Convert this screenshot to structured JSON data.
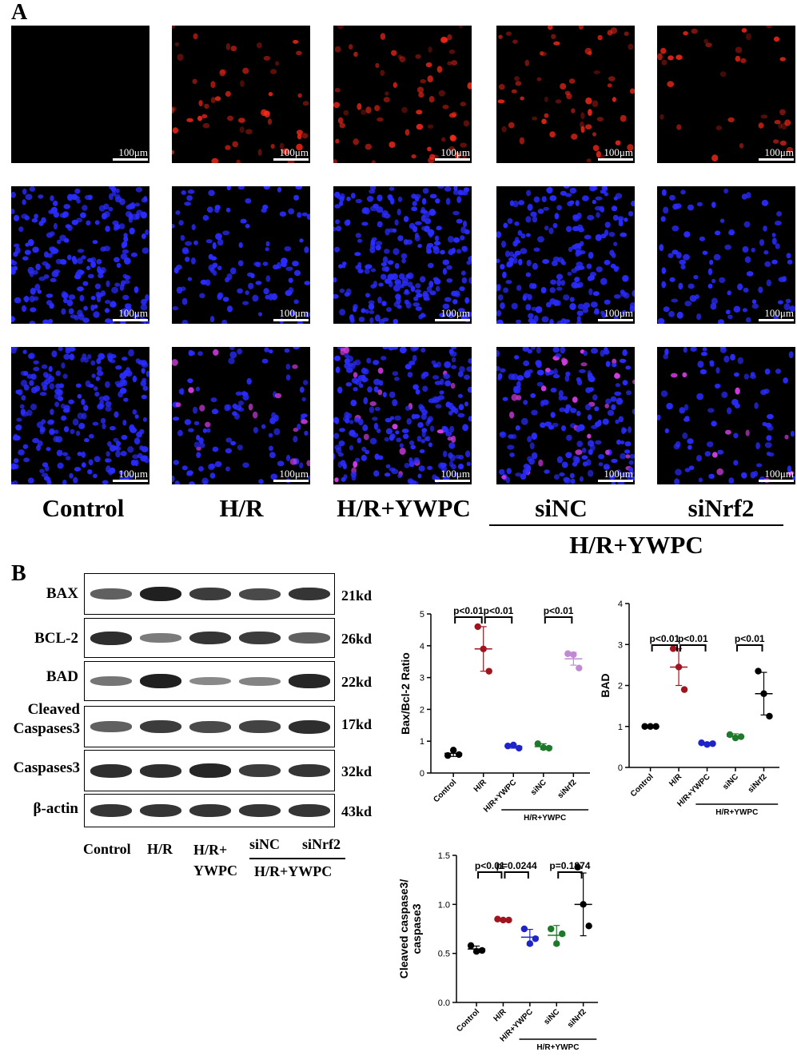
{
  "panel_a": {
    "letter": "A",
    "scale_label": "100μm",
    "group_labels": [
      "Control",
      "H/R",
      "H/R+YWPC",
      "siNC",
      "siNrf2"
    ],
    "bracket_label": "H/R+YWPC",
    "colors": {
      "red_channel": "#ff2a1a",
      "blue_channel": "#2a2cff",
      "merge_pink": "#d03ce0",
      "background": "#000000"
    }
  },
  "panel_b": {
    "letter": "B",
    "blot_labels": [
      "BAX",
      "BCL-2",
      "BAD",
      "Cleaved Caspases3",
      "Caspases3",
      "β-actin"
    ],
    "kd_labels": [
      "21kd",
      "26kd",
      "22kd",
      "17kd",
      "32kd",
      "43kd"
    ],
    "lanes": [
      "Control",
      "H/R",
      "H/R+ YWPC",
      "siNC",
      "siNrf2"
    ],
    "lane_bracket": "H/R+YWPC"
  },
  "chart_data": [
    {
      "type": "scatter",
      "ylabel": "Bax/Bcl-2 Ratio",
      "categories": [
        "Control",
        "H/R",
        "H/R+YWPC",
        "siNC",
        "siNrf2"
      ],
      "bracket_label": "H/R+YWPC",
      "ylim": [
        0,
        5
      ],
      "yticks": [
        0,
        1,
        2,
        3,
        4,
        5
      ],
      "colors": [
        "#000000",
        "#a0141e",
        "#1f24c8",
        "#1e7a2a",
        "#c08ad0"
      ],
      "points": [
        [
          0.55,
          0.72,
          0.58
        ],
        [
          4.6,
          3.9,
          3.2
        ],
        [
          0.85,
          0.88,
          0.78
        ],
        [
          0.92,
          0.8,
          0.78
        ],
        [
          3.75,
          3.72,
          3.3
        ]
      ],
      "mean": [
        0.62,
        3.9,
        0.84,
        0.83,
        3.59
      ],
      "sd": [
        0.1,
        0.7,
        0.06,
        0.09,
        0.2
      ],
      "comparisons": [
        {
          "from": 0,
          "to": 1,
          "label": "p<0.01"
        },
        {
          "from": 1,
          "to": 2,
          "label": "p<0.01"
        },
        {
          "from": 3,
          "to": 4,
          "label": "p<0.01"
        }
      ]
    },
    {
      "type": "scatter",
      "ylabel": "BAD",
      "categories": [
        "Control",
        "H/R",
        "H/R+YWPC",
        "siNC",
        "siNrf2"
      ],
      "bracket_label": "H/R+YWPC",
      "ylim": [
        0,
        4
      ],
      "yticks": [
        0,
        1,
        2,
        3,
        4
      ],
      "colors": [
        "#000000",
        "#a0141e",
        "#1f24c8",
        "#1e7a2a",
        "#000000"
      ],
      "points": [
        [
          1.0,
          1.0,
          1.0
        ],
        [
          2.9,
          2.45,
          1.9
        ],
        [
          0.6,
          0.56,
          0.58
        ],
        [
          0.8,
          0.72,
          0.75
        ],
        [
          2.35,
          1.8,
          1.25
        ]
      ],
      "mean": [
        1.0,
        2.45,
        0.58,
        0.76,
        1.8
      ],
      "sd": [
        0.0,
        0.45,
        0.03,
        0.06,
        0.52
      ],
      "comparisons": [
        {
          "from": 0,
          "to": 1,
          "label": "p<0.01"
        },
        {
          "from": 1,
          "to": 2,
          "label": "p<0.01"
        },
        {
          "from": 3,
          "to": 4,
          "label": "p<0.01"
        }
      ]
    },
    {
      "type": "scatter",
      "ylabel": "Cleaved caspase3/ caspase3",
      "categories": [
        "Control",
        "H/R",
        "H/R+YWPC",
        "siNC",
        "siNrf2"
      ],
      "bracket_label": "H/R+YWPC",
      "ylim": [
        0,
        1.5
      ],
      "yticks": [
        "0.0",
        "0.5",
        "1.0",
        "1.5"
      ],
      "colors": [
        "#000000",
        "#a0141e",
        "#1f24c8",
        "#1e7a2a",
        "#000000"
      ],
      "points": [
        [
          0.58,
          0.52,
          0.53
        ],
        [
          0.85,
          0.84,
          0.84
        ],
        [
          0.75,
          0.6,
          0.65
        ],
        [
          0.75,
          0.6,
          0.7
        ],
        [
          1.38,
          1.0,
          0.78
        ]
      ],
      "mean": [
        0.545,
        0.845,
        0.665,
        0.685,
        1.0
      ],
      "sd": [
        0.03,
        0.01,
        0.08,
        0.1,
        0.32
      ],
      "comparisons": [
        {
          "from": 0,
          "to": 1,
          "label": "p<0.01"
        },
        {
          "from": 1,
          "to": 2,
          "label": "p=0.0244"
        },
        {
          "from": 3,
          "to": 4,
          "label": "p=0.1874"
        }
      ]
    }
  ]
}
